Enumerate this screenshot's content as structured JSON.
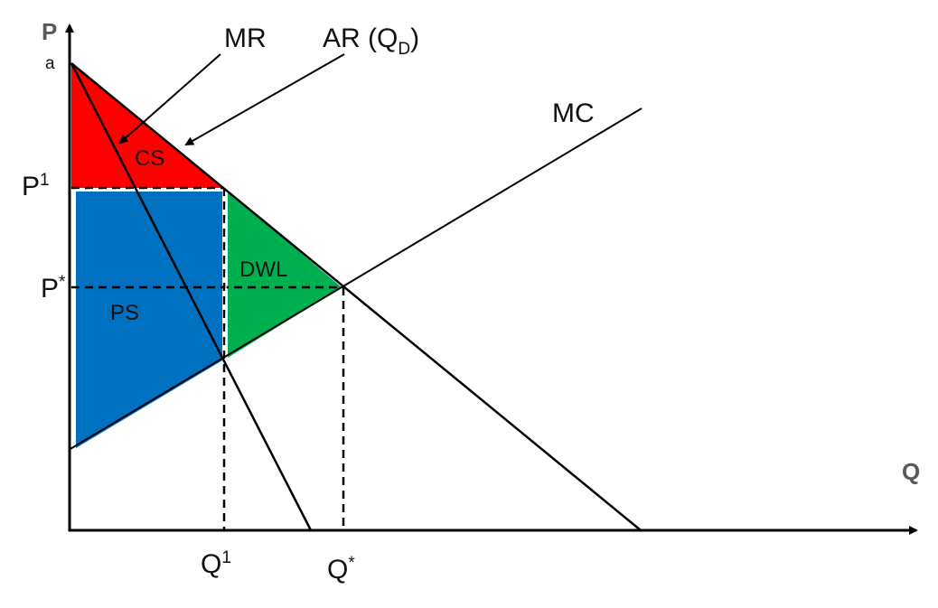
{
  "axes": {
    "y_label": "P",
    "x_label": "Q",
    "y_intercept_label": "a"
  },
  "curves": {
    "mr": {
      "label": "MR"
    },
    "ar": {
      "label_main": "AR (Q",
      "label_sub": "D",
      "label_close": ")"
    },
    "mc": {
      "label": "MC"
    }
  },
  "areas": {
    "cs": {
      "label": "CS",
      "color": "#ff0000"
    },
    "ps": {
      "label": "PS",
      "color": "#0070c0"
    },
    "dwl": {
      "label": "DWL",
      "color": "#00b050"
    }
  },
  "prices": {
    "p1": {
      "base": "P",
      "sup": "1"
    },
    "pstar": {
      "base": "P",
      "sup": "*"
    }
  },
  "quantities": {
    "q1": {
      "base": "Q",
      "sup": "1"
    },
    "qstar": {
      "base": "Q",
      "sup": "*"
    }
  },
  "colors": {
    "line": "#000000",
    "background": "#ffffff"
  }
}
